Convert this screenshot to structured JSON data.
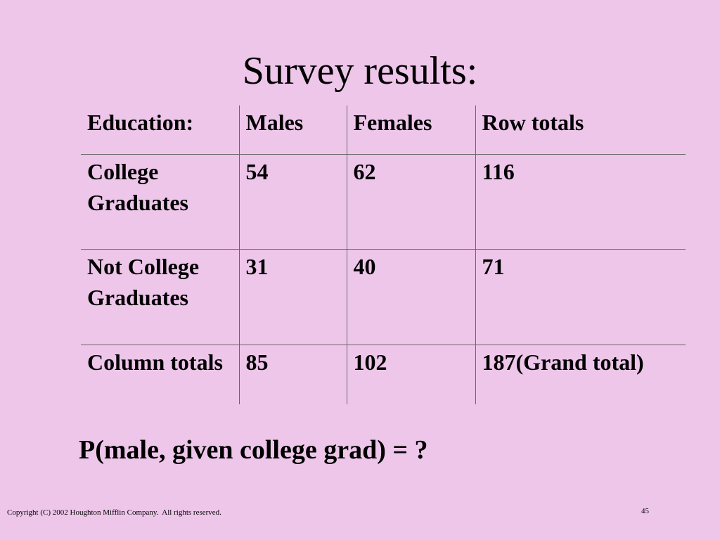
{
  "title": "Survey results:",
  "table": {
    "header": [
      "Education:",
      "Males",
      "Females",
      "Row totals"
    ],
    "rows": [
      [
        "College Graduates",
        54,
        62,
        116
      ],
      [
        "Not College Graduates",
        31,
        40,
        71
      ],
      [
        "Column totals",
        85,
        102,
        "187(Grand total)"
      ]
    ]
  },
  "question": "P(male, given college grad) = ?",
  "footer": {
    "copyright": "Copyright (C) 2002 Houghton Mifflin Company.  All rights reserved.",
    "page_number": 45
  }
}
